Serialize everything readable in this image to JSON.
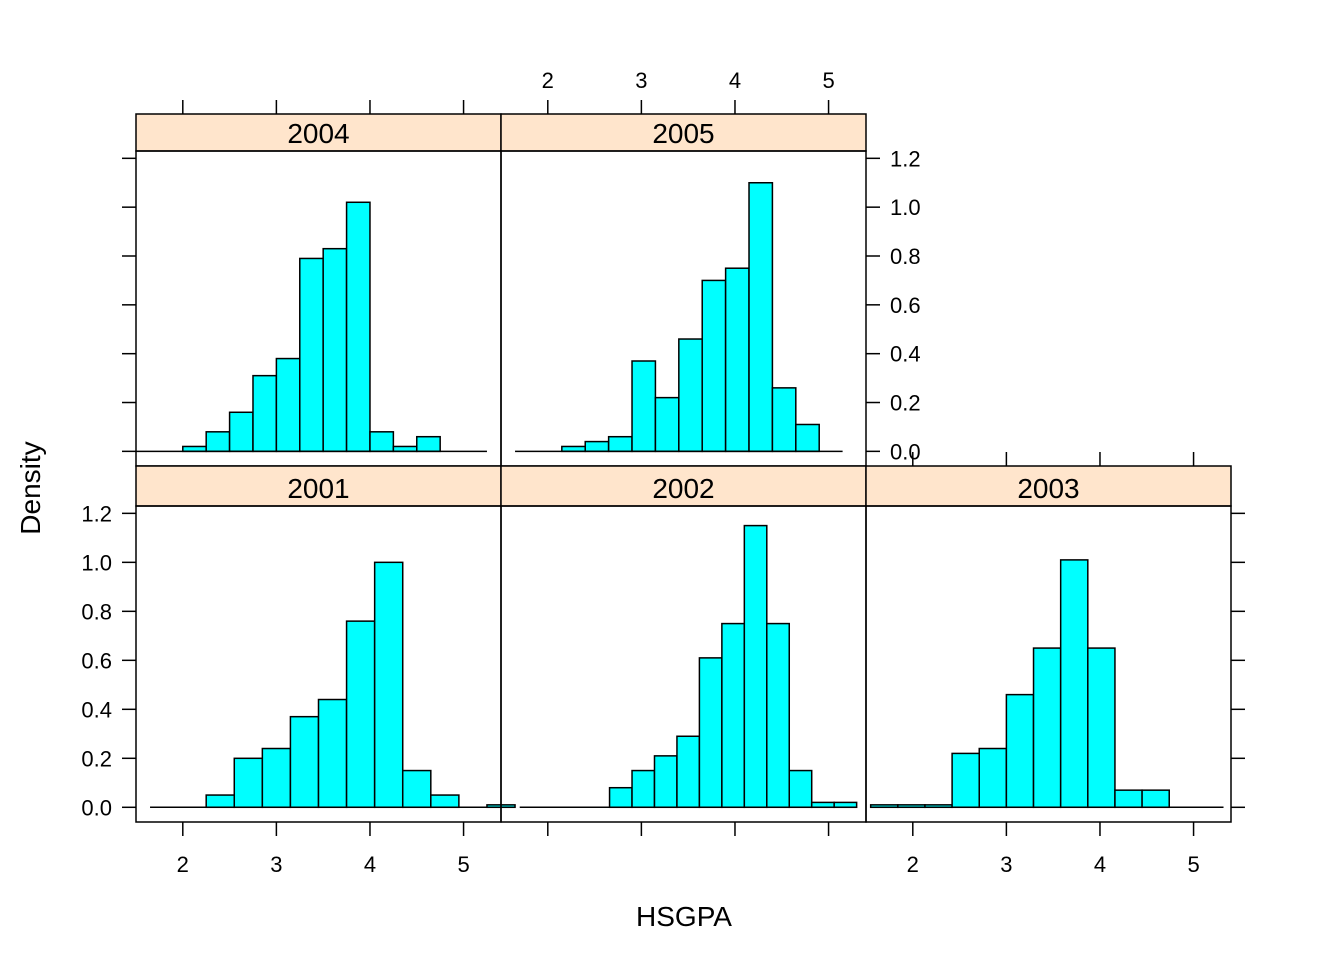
{
  "chart_data": {
    "type": "bar",
    "xlabel": "HSGPA",
    "ylabel": "Density",
    "xlim": [
      1.5,
      5.4
    ],
    "ylim": [
      -0.06,
      1.23
    ],
    "x_ticks": [
      2,
      3,
      4,
      5
    ],
    "y_ticks": [
      0.0,
      0.2,
      0.4,
      0.6,
      0.8,
      1.0,
      1.2
    ],
    "y_tick_labels": [
      "0.0",
      "0.2",
      "0.4",
      "0.6",
      "0.8",
      "1.0",
      "1.2"
    ],
    "colors": {
      "bar_fill": "#00FFFF",
      "bar_stroke": "#000000",
      "strip_fill": "#FFE5CC"
    },
    "panels": [
      {
        "label": "2004",
        "bin_start": 1.5,
        "bin_width": 0.25,
        "values": [
          0.0,
          0.0,
          0.02,
          0.08,
          0.16,
          0.31,
          0.38,
          0.79,
          0.83,
          1.02,
          0.08,
          0.02,
          0.06,
          0.0,
          0.0
        ]
      },
      {
        "label": "2005",
        "bin_start": 1.65,
        "bin_width": 0.25,
        "values": [
          0.0,
          0.0,
          0.02,
          0.04,
          0.06,
          0.37,
          0.22,
          0.46,
          0.7,
          0.75,
          1.1,
          0.26,
          0.11,
          0.0
        ]
      },
      {
        "label": "2001",
        "bin_start": 1.65,
        "bin_width": 0.3,
        "values": [
          0.0,
          0.0,
          0.05,
          0.2,
          0.24,
          0.37,
          0.44,
          0.76,
          1.0,
          0.15,
          0.05,
          0.0,
          0.01
        ]
      },
      {
        "label": "2002",
        "bin_start": 1.7,
        "bin_width": 0.24,
        "values": [
          0.0,
          0.0,
          0.0,
          0.0,
          0.08,
          0.15,
          0.21,
          0.29,
          0.61,
          0.75,
          1.15,
          0.75,
          0.15,
          0.02,
          0.02
        ]
      },
      {
        "label": "2003",
        "bin_start": 1.55,
        "bin_width": 0.29,
        "values": [
          0.01,
          0.01,
          0.01,
          0.22,
          0.24,
          0.46,
          0.65,
          1.01,
          0.65,
          0.07,
          0.07,
          0.0,
          0.0
        ]
      }
    ]
  }
}
